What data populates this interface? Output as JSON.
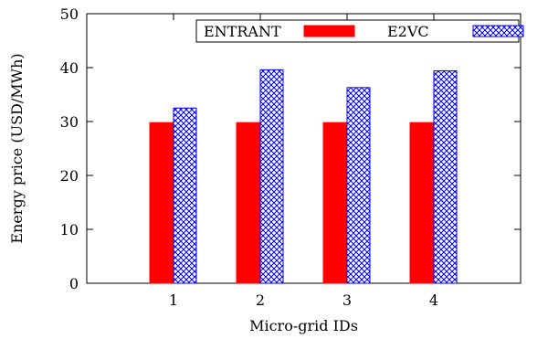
{
  "chart_data": {
    "type": "bar",
    "categories": [
      "1",
      "2",
      "3",
      "4"
    ],
    "xlabel": "Micro-grid IDs",
    "ylabel": "Energy price (USD/MWh)",
    "ylim": [
      0,
      50
    ],
    "yticks": [
      0,
      10,
      20,
      30,
      40,
      50
    ],
    "grid": false,
    "legend": "top-right",
    "series": [
      {
        "name": "ENTRANT",
        "values": [
          29.8,
          29.8,
          29.8,
          29.8
        ],
        "color": "#ff0000",
        "pattern": "solid"
      },
      {
        "name": "E2VC",
        "values": [
          32.5,
          39.6,
          36.3,
          39.4
        ],
        "color": "#0000ff",
        "pattern": "crosshatch"
      }
    ]
  }
}
